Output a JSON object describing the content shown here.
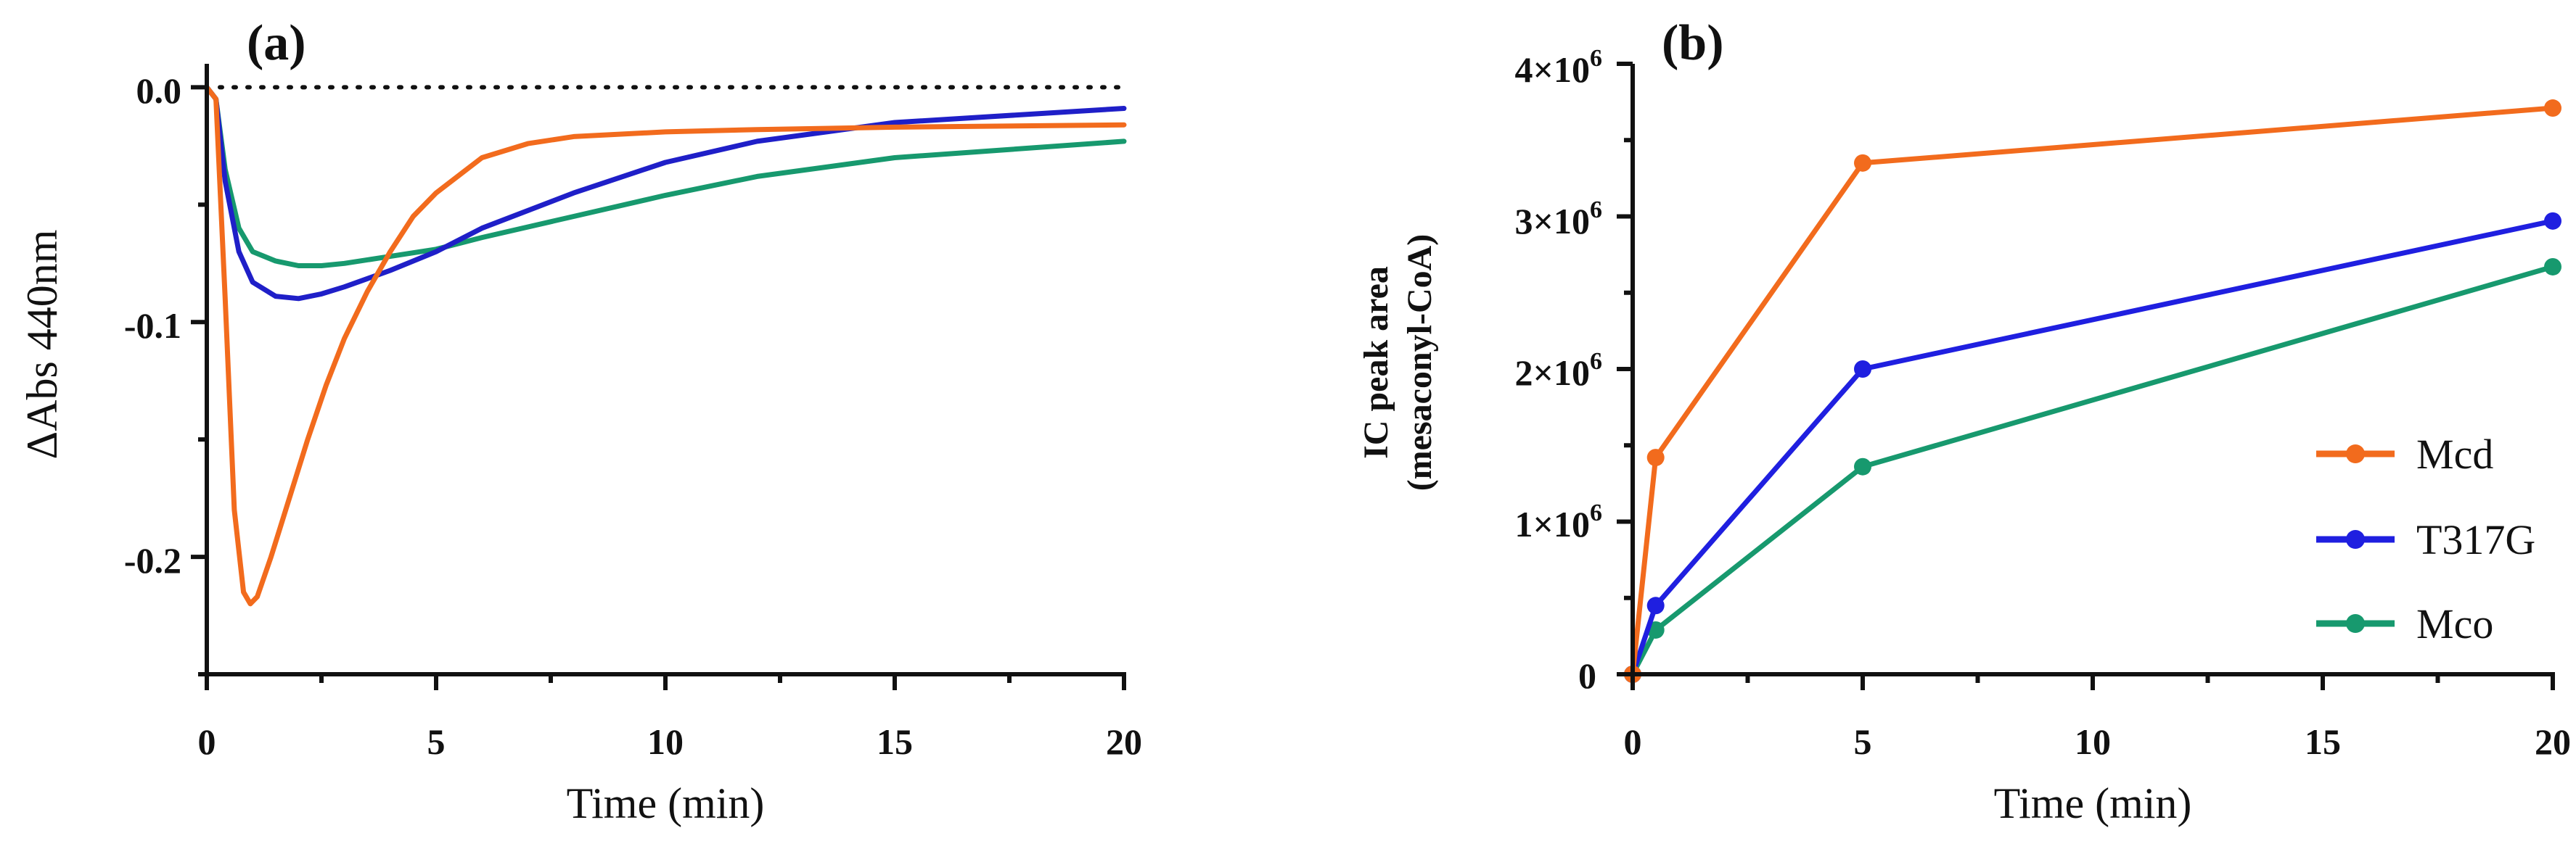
{
  "chart_data": [
    {
      "panel": "(a)",
      "type": "line",
      "xlabel": "Time (min)",
      "ylabel": "ΔAbs 440nm",
      "xlim": [
        0,
        20
      ],
      "ylim": [
        -0.25,
        0.01
      ],
      "xticks": [
        "0",
        "5",
        "10",
        "15",
        "20"
      ],
      "yticks": [
        "0.0",
        "-0.1",
        "-0.2"
      ],
      "ytick_values": [
        0.0,
        -0.1,
        -0.2
      ],
      "reference_line": {
        "y": 0.0,
        "style": "dotted"
      },
      "series": [
        {
          "name": "Mcd",
          "color": "#F26B1D",
          "x": [
            0,
            0.2,
            0.4,
            0.6,
            0.8,
            0.95,
            1.1,
            1.4,
            1.8,
            2.2,
            2.6,
            3.0,
            3.5,
            4.0,
            4.5,
            5.0,
            6.0,
            7.0,
            8.0,
            10.0,
            12.0,
            15.0,
            20.0
          ],
          "y": [
            0.0,
            -0.005,
            -0.09,
            -0.18,
            -0.215,
            -0.22,
            -0.217,
            -0.2,
            -0.175,
            -0.15,
            -0.127,
            -0.107,
            -0.087,
            -0.07,
            -0.055,
            -0.045,
            -0.03,
            -0.024,
            -0.021,
            -0.019,
            -0.018,
            -0.017,
            -0.016
          ]
        },
        {
          "name": "T317G",
          "color": "#1F1FC8",
          "x": [
            0,
            0.2,
            0.4,
            0.7,
            1.0,
            1.5,
            2.0,
            2.5,
            3.0,
            4.0,
            5.0,
            6.0,
            8.0,
            10.0,
            12.0,
            15.0,
            20.0
          ],
          "y": [
            0.0,
            -0.005,
            -0.04,
            -0.07,
            -0.083,
            -0.089,
            -0.09,
            -0.088,
            -0.085,
            -0.078,
            -0.07,
            -0.06,
            -0.045,
            -0.032,
            -0.023,
            -0.015,
            -0.009
          ]
        },
        {
          "name": "Mco",
          "color": "#17996E",
          "x": [
            0,
            0.2,
            0.4,
            0.7,
            1.0,
            1.5,
            2.0,
            2.5,
            3.0,
            4.0,
            5.0,
            6.0,
            8.0,
            10.0,
            12.0,
            15.0,
            20.0
          ],
          "y": [
            0.0,
            -0.005,
            -0.035,
            -0.06,
            -0.07,
            -0.074,
            -0.076,
            -0.076,
            -0.075,
            -0.072,
            -0.069,
            -0.064,
            -0.055,
            -0.046,
            -0.038,
            -0.03,
            -0.023
          ]
        }
      ]
    },
    {
      "panel": "(b)",
      "type": "line",
      "xlabel": "Time (min)",
      "ylabel_line1": "IC peak area",
      "ylabel_line2": "(mesaconyl-CoA)",
      "xlim": [
        0,
        20
      ],
      "ylim": [
        0,
        4000000
      ],
      "xticks": [
        "0",
        "5",
        "10",
        "15",
        "20"
      ],
      "ytick_values": [
        0,
        1000000,
        2000000,
        3000000,
        4000000
      ],
      "yticks": [
        {
          "mantissa": "0",
          "sup": ""
        },
        {
          "mantissa": "1×10",
          "sup": "6"
        },
        {
          "mantissa": "2×10",
          "sup": "6"
        },
        {
          "mantissa": "3×10",
          "sup": "6"
        },
        {
          "mantissa": "4×10",
          "sup": "6"
        }
      ],
      "legend_position": "bottom-right",
      "series": [
        {
          "name": "Mcd",
          "color": "#F26B1D",
          "x": [
            0,
            0.5,
            5,
            20
          ],
          "y": [
            0,
            1420000,
            3350000,
            3710000
          ]
        },
        {
          "name": "T317G",
          "color": "#1F1FE0",
          "x": [
            0,
            0.5,
            5,
            20
          ],
          "y": [
            0,
            450000,
            2000000,
            2970000
          ]
        },
        {
          "name": "Mco",
          "color": "#17996E",
          "x": [
            0,
            0.5,
            5,
            20
          ],
          "y": [
            0,
            290000,
            1360000,
            2670000
          ]
        }
      ]
    }
  ]
}
